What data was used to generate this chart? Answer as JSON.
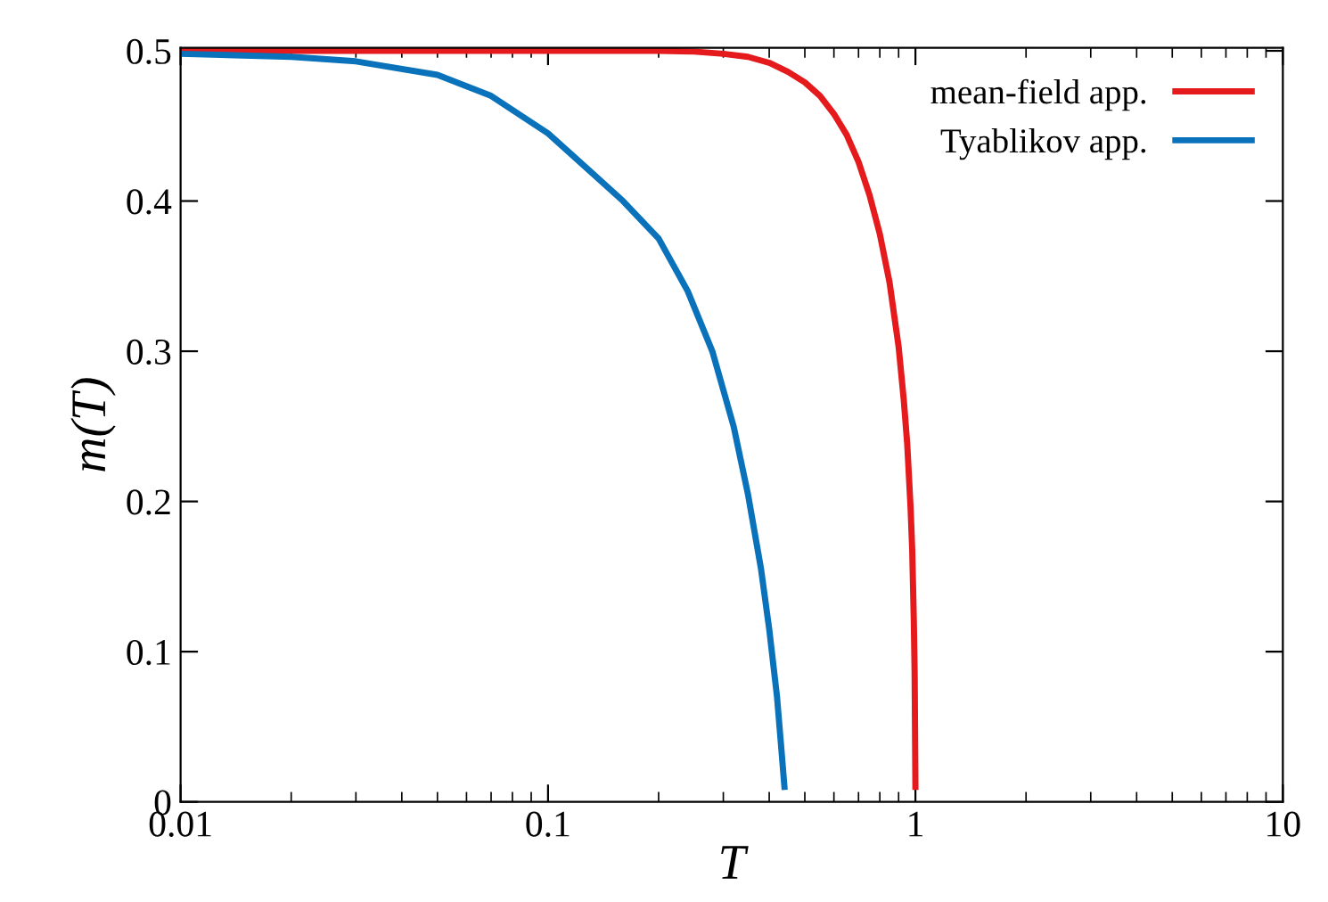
{
  "chart_data": {
    "type": "line",
    "xlabel": "T",
    "ylabel": "m(T)",
    "log": "x",
    "xlim": [
      0.01,
      10
    ],
    "xticks": [
      0.01,
      0.1,
      1,
      10
    ],
    "ylim": [
      0,
      0.502
    ],
    "yticks": [
      0,
      0.1,
      0.2,
      0.3,
      0.4,
      0.5
    ],
    "grid": false,
    "legend": "top right",
    "marker": "none",
    "line_style": "solid",
    "series": [
      {
        "name": "mean-field app.",
        "color": "#e41a1c",
        "x": [
          0.01,
          0.05,
          0.1,
          0.2,
          0.25,
          0.3,
          0.35,
          0.4,
          0.45,
          0.5,
          0.55,
          0.6,
          0.65,
          0.7,
          0.75,
          0.8,
          0.85,
          0.9,
          0.93,
          0.95,
          0.97,
          0.98,
          0.99,
          0.995,
          1.0
        ],
        "values": [
          0.5,
          0.5,
          0.5,
          0.5,
          0.4995,
          0.498,
          0.496,
          0.492,
          0.486,
          0.479,
          0.47,
          0.458,
          0.444,
          0.426,
          0.404,
          0.378,
          0.346,
          0.303,
          0.267,
          0.238,
          0.196,
          0.168,
          0.12,
          0.086,
          0.01
        ]
      },
      {
        "name": "Tyablikov app.",
        "color": "#0a72ba",
        "x": [
          0.01,
          0.02,
          0.03,
          0.05,
          0.07,
          0.1,
          0.13,
          0.16,
          0.2,
          0.24,
          0.28,
          0.32,
          0.35,
          0.38,
          0.4,
          0.42,
          0.43,
          0.44
        ],
        "values": [
          0.498,
          0.496,
          0.493,
          0.484,
          0.47,
          0.445,
          0.42,
          0.4,
          0.375,
          0.34,
          0.3,
          0.25,
          0.205,
          0.155,
          0.115,
          0.07,
          0.04,
          0.01
        ]
      }
    ]
  }
}
